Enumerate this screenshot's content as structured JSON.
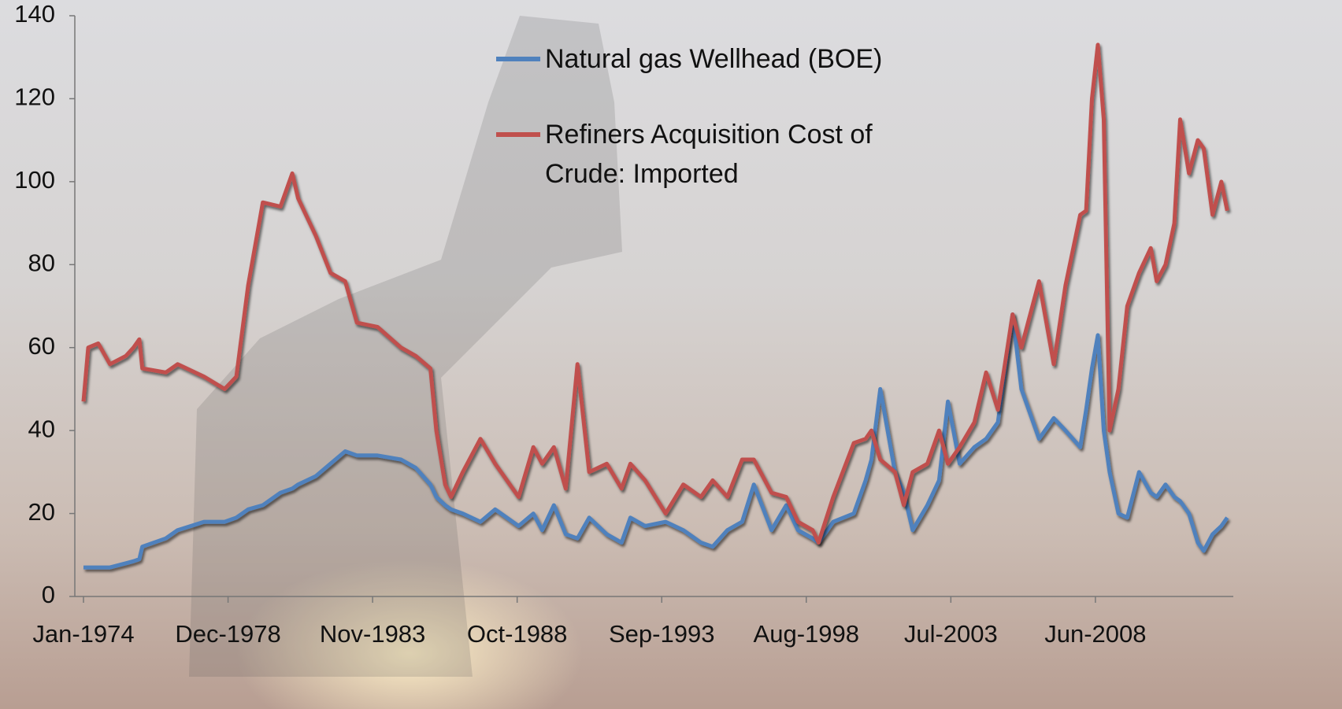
{
  "chart_data": {
    "type": "line",
    "x": [
      1974.0,
      1974.16,
      1974.5,
      1974.9,
      1975.44,
      1975.7,
      1975.9,
      1976.0,
      1976.8,
      1977.2,
      1978.1,
      1978.8,
      1979.2,
      1979.6,
      1980.1,
      1980.7,
      1981.1,
      1981.3,
      1981.9,
      1982.4,
      1982.9,
      1983.3,
      1984.0,
      1984.8,
      1985.3,
      1985.8,
      1986.0,
      1986.3,
      1986.5,
      1986.9,
      1987.5,
      1988.0,
      1988.8,
      1989.3,
      1989.6,
      1990.0,
      1990.4,
      1990.8,
      1991.2,
      1991.8,
      1992.3,
      1992.6,
      1993.1,
      1993.8,
      1994.4,
      1995.0,
      1995.4,
      1995.9,
      1996.4,
      1996.8,
      1997.4,
      1997.9,
      1998.3,
      1998.8,
      1999.0,
      1999.5,
      2000.2,
      2000.6,
      2000.8,
      2001.1,
      2001.6,
      2001.9,
      2002.2,
      2002.7,
      2003.1,
      2003.4,
      2003.8,
      2004.3,
      2004.7,
      2005.1,
      2005.6,
      2005.9,
      2006.5,
      2007.0,
      2007.4,
      2007.9,
      2008.1,
      2008.3,
      2008.5,
      2008.7,
      2008.9,
      2009.2,
      2009.5,
      2009.9,
      2010.3,
      2010.5,
      2010.8,
      2011.1,
      2011.3,
      2011.6,
      2011.9,
      2012.1,
      2012.4,
      2012.7,
      2012.9
    ],
    "series": [
      {
        "name": "Natural gas Wellhead (BOE)",
        "color": "#4f81bd",
        "values": [
          7,
          7,
          7,
          7,
          8,
          8.5,
          9,
          12,
          14,
          16,
          18,
          18,
          19,
          21,
          22,
          25,
          26,
          27,
          29,
          32,
          35,
          34,
          34,
          33,
          31,
          27,
          24,
          22,
          21,
          20,
          18,
          21,
          17,
          20,
          16,
          22,
          15,
          14,
          19,
          15,
          13,
          19,
          17,
          18,
          16,
          13,
          12,
          16,
          18,
          27,
          16,
          22,
          16,
          14,
          13,
          18,
          20,
          28,
          33,
          50,
          30,
          25,
          16,
          22,
          28,
          47,
          32,
          36,
          38,
          42,
          68,
          50,
          38,
          43,
          40,
          36,
          45,
          55,
          63,
          40,
          30,
          20,
          19,
          30,
          25,
          24,
          27,
          24,
          23,
          20,
          13,
          11,
          15,
          17,
          19
        ]
      },
      {
        "name": "Refiners Acquisition Cost of Crude: Imported",
        "color": "#c0504d",
        "values": [
          47,
          60,
          61,
          56,
          58,
          60,
          62,
          55,
          54,
          56,
          53,
          50,
          53,
          75,
          95,
          94,
          102,
          96,
          87,
          78,
          76,
          66,
          65,
          60,
          58,
          55,
          40,
          27,
          24,
          30,
          38,
          32,
          24,
          36,
          32,
          36,
          26,
          56,
          30,
          32,
          26,
          32,
          28,
          20,
          27,
          24,
          28,
          24,
          33,
          33,
          25,
          24,
          18,
          16,
          13,
          24,
          37,
          38,
          40,
          33,
          30,
          22,
          30,
          32,
          40,
          32,
          36,
          42,
          54,
          45,
          68,
          60,
          76,
          56,
          75,
          92,
          93,
          120,
          133,
          115,
          40,
          50,
          70,
          78,
          84,
          76,
          80,
          90,
          115,
          102,
          110,
          108,
          92,
          100,
          93
        ]
      }
    ],
    "xlim": [
      1974,
      2013
    ],
    "xticks": [
      {
        "value": 1974.0,
        "label": "Jan-1974"
      },
      {
        "value": 1978.917,
        "label": "Dec-1978"
      },
      {
        "value": 1983.833,
        "label": "Nov-1983"
      },
      {
        "value": 1988.75,
        "label": "Oct-1988"
      },
      {
        "value": 1993.667,
        "label": "Sep-1993"
      },
      {
        "value": 1998.583,
        "label": "Aug-1998"
      },
      {
        "value": 2003.5,
        "label": "Jul-2003"
      },
      {
        "value": 2008.417,
        "label": "Jun-2008"
      }
    ],
    "ylim": [
      0,
      140
    ],
    "yticks": [
      0,
      20,
      40,
      60,
      80,
      100,
      120,
      140
    ],
    "grid": false,
    "legend": "top"
  }
}
